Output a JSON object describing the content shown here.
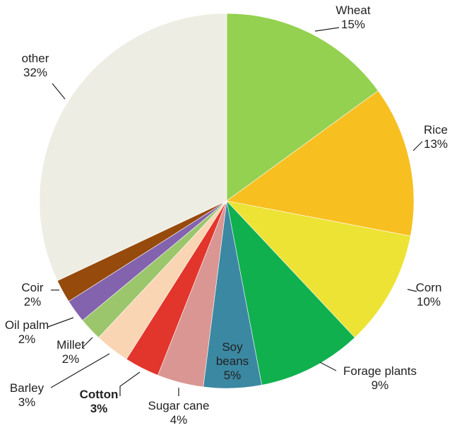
{
  "chart_data": {
    "type": "pie",
    "start_angle_deg": 0,
    "direction": "clockwise",
    "legend": "none",
    "slices": [
      {
        "name": "Wheat",
        "label_lines": [
          "Wheat",
          "15%"
        ],
        "value": 15,
        "color": "#95d150",
        "bold": false
      },
      {
        "name": "Rice",
        "label_lines": [
          "Rice",
          "13%"
        ],
        "value": 13,
        "color": "#f8bf20",
        "bold": false
      },
      {
        "name": "Corn",
        "label_lines": [
          "Corn",
          "10%"
        ],
        "value": 10,
        "color": "#ece334",
        "bold": false
      },
      {
        "name": "Forage plants",
        "label_lines": [
          "Forage plants",
          "9%"
        ],
        "value": 9,
        "color": "#10b04f",
        "bold": false
      },
      {
        "name": "Soy beans",
        "label_lines": [
          "Soy",
          "beans",
          "5%"
        ],
        "value": 5,
        "color": "#3b88a2",
        "bold": false
      },
      {
        "name": "Sugar cane",
        "label_lines": [
          "Sugar cane",
          "4%"
        ],
        "value": 4,
        "color": "#d99693",
        "bold": false
      },
      {
        "name": "Cotton",
        "label_lines": [
          "Cotton",
          "3%"
        ],
        "value": 3,
        "color": "#e2352c",
        "bold": true
      },
      {
        "name": "Barley",
        "label_lines": [
          "Barley",
          "3%"
        ],
        "value": 3,
        "color": "#fad5b3",
        "bold": false
      },
      {
        "name": "Millet",
        "label_lines": [
          "Millet",
          "2%"
        ],
        "value": 2,
        "color": "#9bc66b",
        "bold": false
      },
      {
        "name": "Oil palm",
        "label_lines": [
          "Oil palm",
          "2%"
        ],
        "value": 2,
        "color": "#8363ad",
        "bold": false
      },
      {
        "name": "Coir",
        "label_lines": [
          "Coir",
          "2%"
        ],
        "value": 2,
        "color": "#964a0c",
        "bold": false
      },
      {
        "name": "other",
        "label_lines": [
          "other",
          "32%"
        ],
        "value": 32,
        "color": "#eeede3",
        "bold": false
      }
    ]
  }
}
